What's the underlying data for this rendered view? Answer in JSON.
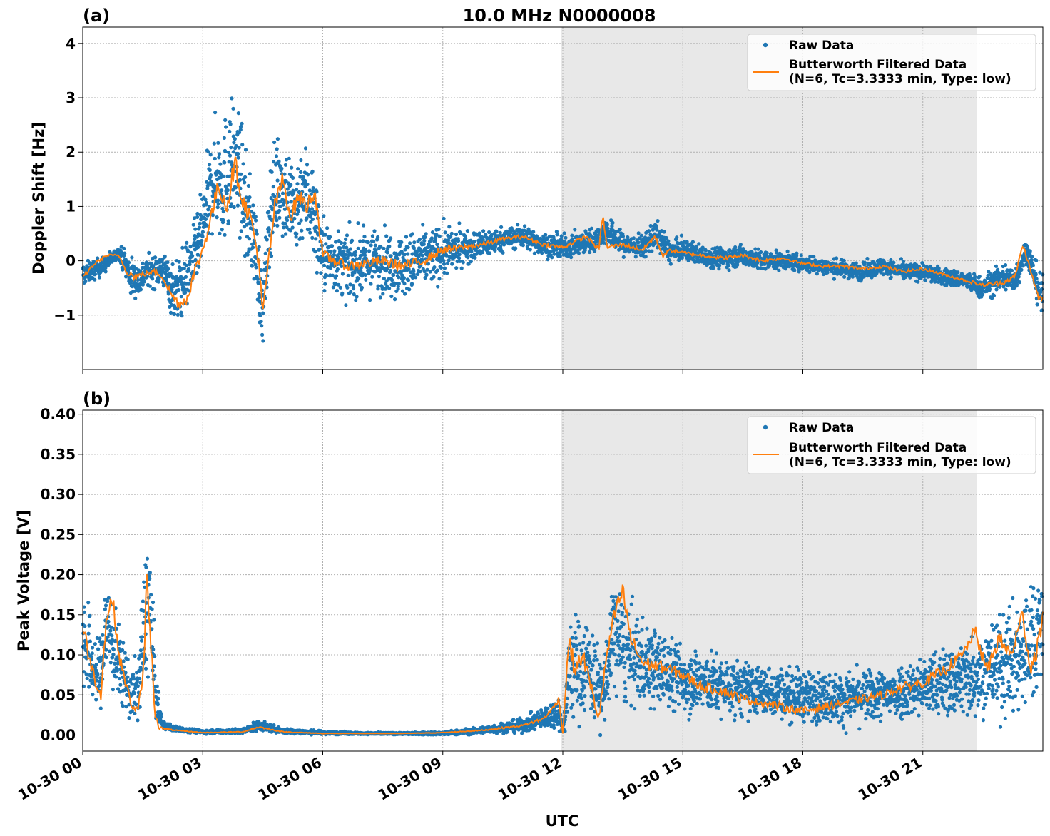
{
  "figure": {
    "title": "10.0 MHz N0000008",
    "xlabel": "UTC"
  },
  "colors": {
    "raw": "#1f77b4",
    "filtered": "#ff7f0e",
    "shade": "#e8e8e8",
    "grid": "#b0b0b0"
  },
  "chart_data": [
    {
      "type": "scatter",
      "panel_label": "(a)",
      "title": "10.0 MHz N0000008",
      "xlabel": "",
      "ylabel": "Doppler Shift [Hz]",
      "xlim_hours": [
        0,
        24
      ],
      "ylim": [
        -2.0,
        4.3
      ],
      "yticks": [
        -1,
        0,
        1,
        2,
        3,
        4
      ],
      "ytick_labels": [
        "−1",
        "0",
        "1",
        "2",
        "3",
        "4"
      ],
      "grid": true,
      "legend_position": "upper right",
      "shaded_region_hours": [
        11.95,
        22.35
      ],
      "series": [
        {
          "name": "Raw Data",
          "style": "points",
          "x_hours": [
            0,
            0.5,
            0.9,
            1.0,
            1.2,
            1.4,
            1.6,
            2.0,
            2.3,
            2.6,
            2.9,
            3.1,
            3.3,
            3.5,
            3.7,
            3.9,
            4.1,
            4.3,
            4.5,
            4.7,
            4.9,
            5.1,
            5.3,
            5.5,
            5.7,
            6.0,
            6.3,
            6.6,
            7.0,
            7.5,
            8.0,
            8.5,
            9.0,
            9.5,
            10.0,
            10.5,
            11.0,
            11.5,
            12.0,
            12.4,
            12.8,
            13.1,
            13.5,
            14.0,
            14.3,
            14.7,
            15.0,
            15.5,
            16.0,
            16.5,
            17.0,
            17.5,
            18.0,
            18.5,
            19.0,
            19.5,
            20.0,
            20.5,
            21.0,
            21.5,
            22.0,
            22.5,
            23.0,
            23.3,
            23.6,
            23.8,
            24.0
          ],
          "y_center": [
            -0.25,
            -0.1,
            0.15,
            0.05,
            -0.3,
            -0.35,
            -0.2,
            -0.15,
            -0.6,
            -0.3,
            0.3,
            1.0,
            1.6,
            1.4,
            1.8,
            1.7,
            0.8,
            0.4,
            -1.0,
            1.0,
            1.5,
            1.2,
            0.9,
            1.3,
            1.1,
            0.1,
            0.0,
            -0.1,
            -0.05,
            0.0,
            -0.1,
            0.05,
            0.15,
            0.25,
            0.3,
            0.4,
            0.45,
            0.3,
            0.25,
            0.3,
            0.4,
            0.55,
            0.3,
            0.25,
            0.5,
            0.15,
            0.2,
            0.1,
            0.05,
            0.1,
            0.0,
            0.0,
            -0.05,
            -0.1,
            -0.15,
            -0.2,
            -0.1,
            -0.2,
            -0.2,
            -0.3,
            -0.35,
            -0.5,
            -0.3,
            -0.35,
            0.2,
            -0.3,
            -0.75
          ],
          "y_spread": [
            0.2,
            0.15,
            0.1,
            0.2,
            0.35,
            0.3,
            0.25,
            0.3,
            0.55,
            0.6,
            0.6,
            0.8,
            0.9,
            1.1,
            1.1,
            1.0,
            0.9,
            0.8,
            0.6,
            0.8,
            0.9,
            0.9,
            0.9,
            0.85,
            0.9,
            0.65,
            0.55,
            0.55,
            0.55,
            0.55,
            0.55,
            0.5,
            0.45,
            0.3,
            0.25,
            0.2,
            0.2,
            0.2,
            0.2,
            0.2,
            0.2,
            0.25,
            0.2,
            0.2,
            0.25,
            0.2,
            0.18,
            0.18,
            0.18,
            0.18,
            0.18,
            0.15,
            0.15,
            0.15,
            0.15,
            0.15,
            0.15,
            0.15,
            0.15,
            0.15,
            0.15,
            0.2,
            0.25,
            0.25,
            0.2,
            0.3,
            0.4
          ]
        },
        {
          "name": "Butterworth Filtered Data\n(N=6, Tc=3.3333 min, Type: low)",
          "style": "line",
          "x_hours": [
            0,
            0.3,
            0.6,
            0.9,
            1.1,
            1.3,
            1.5,
            1.8,
            2.0,
            2.2,
            2.4,
            2.6,
            2.8,
            3.0,
            3.2,
            3.4,
            3.6,
            3.8,
            4.0,
            4.2,
            4.4,
            4.5,
            4.6,
            4.8,
            5.0,
            5.2,
            5.4,
            5.6,
            5.8,
            6.0,
            6.3,
            6.6,
            7.0,
            7.5,
            8.0,
            8.5,
            9.0,
            9.5,
            10.0,
            10.5,
            11.0,
            11.5,
            12.0,
            12.3,
            12.6,
            12.9,
            13.0,
            13.1,
            13.5,
            14.0,
            14.3,
            14.5,
            14.7,
            15.0,
            15.5,
            16.0,
            16.5,
            17.0,
            17.5,
            18.0,
            18.5,
            19.0,
            19.5,
            20.0,
            20.5,
            21.0,
            21.5,
            22.0,
            22.5,
            23.0,
            23.3,
            23.5,
            23.7,
            23.9,
            24.0
          ],
          "y": [
            -0.3,
            -0.05,
            0.1,
            0.1,
            -0.2,
            -0.3,
            -0.25,
            -0.2,
            -0.3,
            -0.6,
            -0.8,
            -0.7,
            -0.2,
            0.2,
            0.8,
            1.4,
            1.0,
            1.8,
            1.1,
            0.8,
            0.0,
            -1.0,
            -0.3,
            1.0,
            1.5,
            0.8,
            1.2,
            1.0,
            1.3,
            0.1,
            0.0,
            -0.1,
            -0.05,
            0.0,
            -0.1,
            0.0,
            0.2,
            0.25,
            0.3,
            0.4,
            0.45,
            0.3,
            0.25,
            0.35,
            0.45,
            0.2,
            0.85,
            0.25,
            0.3,
            0.2,
            0.45,
            0.1,
            0.2,
            0.15,
            0.1,
            0.05,
            0.1,
            0.0,
            0.05,
            -0.05,
            -0.1,
            -0.1,
            -0.15,
            -0.1,
            -0.2,
            -0.15,
            -0.25,
            -0.35,
            -0.45,
            -0.4,
            -0.3,
            0.3,
            -0.2,
            -0.7,
            -0.7
          ]
        }
      ]
    },
    {
      "type": "scatter",
      "panel_label": "(b)",
      "title": "",
      "xlabel": "UTC",
      "ylabel": "Peak Voltage [V]",
      "xlim_hours": [
        0,
        24
      ],
      "ylim": [
        -0.02,
        0.405
      ],
      "yticks": [
        0.0,
        0.05,
        0.1,
        0.15,
        0.2,
        0.25,
        0.3,
        0.35,
        0.4
      ],
      "ytick_labels": [
        "0.00",
        "0.05",
        "0.10",
        "0.15",
        "0.20",
        "0.25",
        "0.30",
        "0.35",
        "0.40"
      ],
      "xticks_hours": [
        0,
        3,
        6,
        9,
        12,
        15,
        18,
        21
      ],
      "xtick_labels": [
        "10-30 00",
        "10-30 03",
        "10-30 06",
        "10-30 09",
        "10-30 12",
        "10-30 15",
        "10-30 18",
        "10-30 21"
      ],
      "grid": true,
      "legend_position": "upper right",
      "shaded_region_hours": [
        11.95,
        22.35
      ],
      "series": [
        {
          "name": "Raw Data",
          "style": "points",
          "x_hours": [
            0,
            0.2,
            0.4,
            0.6,
            0.8,
            1.0,
            1.2,
            1.4,
            1.6,
            1.7,
            1.8,
            1.9,
            2.0,
            2.3,
            3.0,
            4.0,
            4.4,
            5.0,
            6.0,
            7.0,
            8.0,
            9.0,
            10.0,
            11.0,
            11.5,
            11.9,
            12.0,
            12.2,
            12.4,
            12.6,
            12.8,
            13.0,
            13.3,
            13.6,
            14.0,
            14.5,
            15.0,
            16.0,
            17.0,
            18.0,
            19.0,
            20.0,
            21.0,
            22.0,
            22.5,
            23.0,
            23.5,
            24.0
          ],
          "y_center": [
            0.13,
            0.09,
            0.07,
            0.14,
            0.1,
            0.08,
            0.05,
            0.06,
            0.17,
            0.15,
            0.06,
            0.03,
            0.012,
            0.008,
            0.004,
            0.005,
            0.012,
            0.005,
            0.003,
            0.002,
            0.002,
            0.002,
            0.006,
            0.012,
            0.02,
            0.03,
            0.005,
            0.09,
            0.08,
            0.09,
            0.07,
            0.05,
            0.13,
            0.1,
            0.09,
            0.08,
            0.07,
            0.06,
            0.055,
            0.05,
            0.045,
            0.05,
            0.06,
            0.07,
            0.08,
            0.09,
            0.1,
            0.14
          ],
          "y_spread": [
            0.07,
            0.05,
            0.04,
            0.07,
            0.05,
            0.04,
            0.03,
            0.04,
            0.09,
            0.08,
            0.04,
            0.015,
            0.005,
            0.003,
            0.002,
            0.003,
            0.006,
            0.003,
            0.002,
            0.001,
            0.001,
            0.002,
            0.004,
            0.008,
            0.012,
            0.02,
            0.004,
            0.07,
            0.06,
            0.06,
            0.05,
            0.04,
            0.07,
            0.06,
            0.05,
            0.045,
            0.04,
            0.035,
            0.03,
            0.03,
            0.03,
            0.03,
            0.035,
            0.045,
            0.05,
            0.06,
            0.07,
            0.08
          ]
        },
        {
          "name": "Butterworth Filtered Data\n(N=6, Tc=3.3333 min, Type: low)",
          "style": "line",
          "x_hours": [
            0,
            0.15,
            0.3,
            0.45,
            0.6,
            0.75,
            0.9,
            1.05,
            1.2,
            1.35,
            1.5,
            1.6,
            1.7,
            1.8,
            1.9,
            2.0,
            2.3,
            3.0,
            4.0,
            4.4,
            5.0,
            6.0,
            7.0,
            8.0,
            9.0,
            10.0,
            11.0,
            11.5,
            11.7,
            11.9,
            12.0,
            12.15,
            12.3,
            12.5,
            12.7,
            12.9,
            13.1,
            13.3,
            13.5,
            13.7,
            14.0,
            14.5,
            15.0,
            15.5,
            16.0,
            16.5,
            17.0,
            17.5,
            18.0,
            18.5,
            19.0,
            19.5,
            20.0,
            20.5,
            21.0,
            21.5,
            22.0,
            22.3,
            22.6,
            22.9,
            23.2,
            23.5,
            23.7,
            23.9,
            24.0
          ],
          "y": [
            0.135,
            0.1,
            0.07,
            0.05,
            0.15,
            0.17,
            0.1,
            0.07,
            0.04,
            0.03,
            0.06,
            0.19,
            0.12,
            0.03,
            0.01,
            0.008,
            0.006,
            0.003,
            0.004,
            0.01,
            0.004,
            0.002,
            0.002,
            0.002,
            0.003,
            0.006,
            0.012,
            0.02,
            0.03,
            0.045,
            0.002,
            0.12,
            0.08,
            0.1,
            0.06,
            0.02,
            0.1,
            0.15,
            0.18,
            0.12,
            0.09,
            0.085,
            0.075,
            0.06,
            0.055,
            0.045,
            0.04,
            0.035,
            0.03,
            0.035,
            0.04,
            0.045,
            0.05,
            0.06,
            0.065,
            0.08,
            0.1,
            0.13,
            0.08,
            0.12,
            0.1,
            0.15,
            0.08,
            0.12,
            0.14
          ]
        }
      ]
    }
  ]
}
